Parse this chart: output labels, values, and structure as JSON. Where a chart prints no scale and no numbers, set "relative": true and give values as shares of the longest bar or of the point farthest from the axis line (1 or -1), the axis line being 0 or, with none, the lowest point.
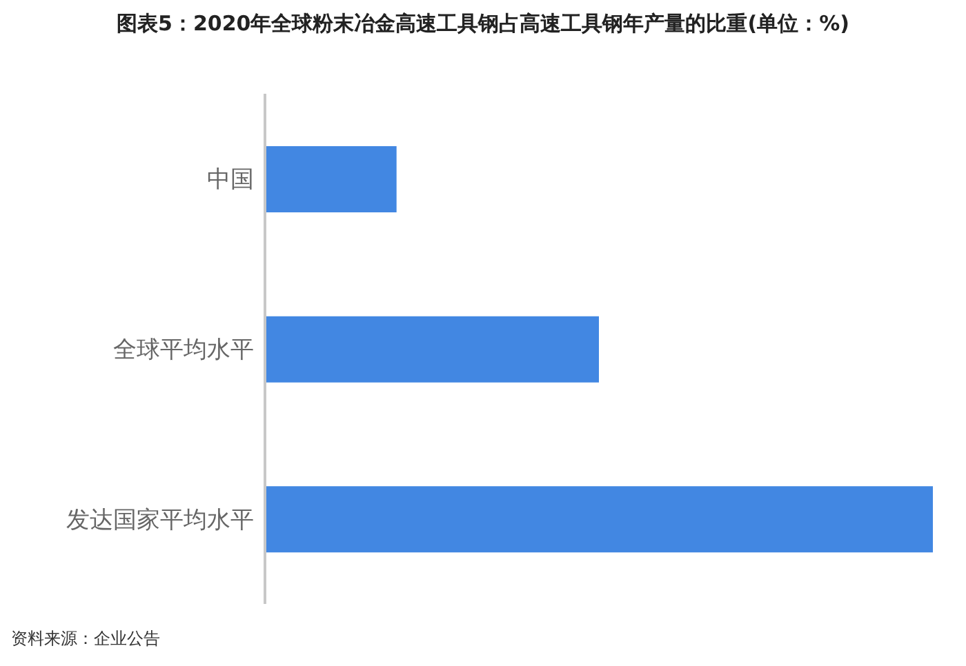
{
  "chart_data": {
    "type": "bar",
    "orientation": "horizontal",
    "relative": true,
    "title": "图表5：2020年全球粉末冶金高速工具钢占高速工具钢年产量的比重(单位：%)",
    "categories": [
      "中国",
      "全球平均水平",
      "发达国家平均水平"
    ],
    "values": [
      0.197,
      0.5,
      1
    ],
    "color": "#4287e2",
    "annotations": [
      "资料来源：企业公告"
    ]
  }
}
